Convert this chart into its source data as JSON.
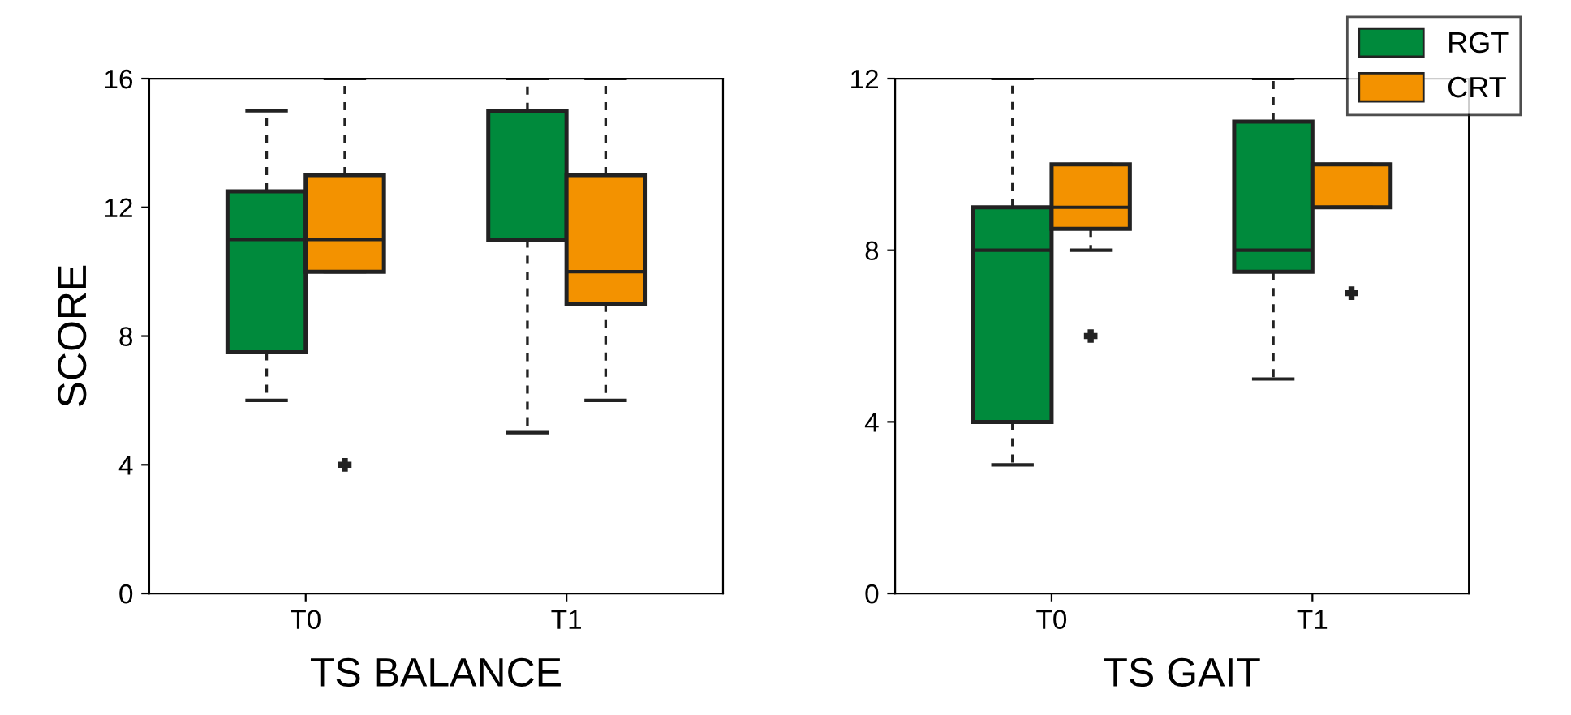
{
  "chart_data": [
    {
      "type": "box",
      "xlabel": "TS BALANCE",
      "ylabel": "SCORE",
      "categories": [
        "T0",
        "T1"
      ],
      "ylim": [
        0,
        16
      ],
      "yticks": [
        0,
        4,
        8,
        12,
        16
      ],
      "grid": false,
      "series": [
        {
          "color": "#008a3c",
          "boxes": [
            {
              "low": 6,
              "q1": 7.5,
              "median": 11,
              "q3": 12.5,
              "high": 15
            },
            {
              "low": 5,
              "q1": 11,
              "median": 15,
              "q3": 15,
              "high": 16
            }
          ]
        },
        {
          "color": "#f39200",
          "boxes": [
            {
              "low": 10,
              "q1": 10,
              "median": 11,
              "q3": 13,
              "high": 16,
              "outliers": [
                4
              ]
            },
            {
              "low": 6,
              "q1": 9,
              "median": 10,
              "q3": 13,
              "high": 16
            }
          ]
        }
      ]
    },
    {
      "type": "box",
      "xlabel": "TS GAIT",
      "categories": [
        "T0",
        "T1"
      ],
      "ylim": [
        0,
        12
      ],
      "yticks": [
        0,
        4,
        8,
        12
      ],
      "grid": false,
      "legend": "top right",
      "series": [
        {
          "name": "RGT",
          "color": "#008a3c",
          "boxes": [
            {
              "low": 3,
              "q1": 4,
              "median": 8,
              "q3": 9,
              "high": 12
            },
            {
              "low": 5,
              "q1": 7.5,
              "median": 8,
              "q3": 11,
              "high": 12
            }
          ]
        },
        {
          "name": "CRT",
          "color": "#f39200",
          "boxes": [
            {
              "low": 8,
              "q1": 8.5,
              "median": 9,
              "q3": 10,
              "high": 10,
              "outliers": [
                6
              ]
            },
            {
              "low": 9,
              "q1": 9,
              "median": 10,
              "q3": 10,
              "high": 10,
              "outliers": [
                7
              ]
            }
          ]
        }
      ]
    }
  ]
}
